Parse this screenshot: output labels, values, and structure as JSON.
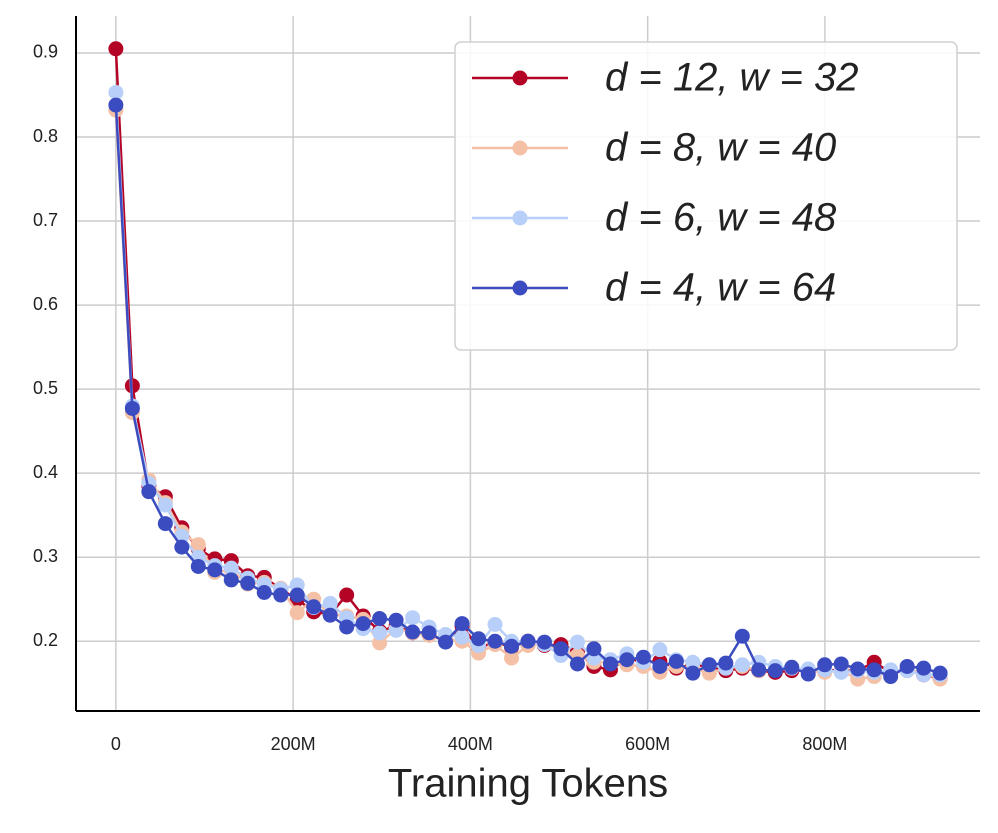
{
  "chart_data": {
    "type": "line",
    "xlabel": "Training Tokens",
    "x": [
      0,
      18.6,
      37.2,
      55.8,
      74.4,
      93,
      111.6,
      130.2,
      148.8,
      167.4,
      186,
      204.6,
      223.2,
      241.8,
      260.4,
      279,
      297.6,
      316.2,
      334.8,
      353.4,
      372,
      390.6,
      409.2,
      427.8,
      446.4,
      465,
      483.6,
      502.2,
      520.8,
      539.4,
      558,
      576.6,
      595.2,
      613.8,
      632.4,
      651,
      669.6,
      688.2,
      706.8,
      725.4,
      744,
      762.6,
      781.2,
      799.8,
      818.4,
      837,
      855.6,
      874.2,
      892.8,
      911.4,
      930
    ],
    "series": [
      {
        "name": "d = 12, w = 32",
        "color": "#b40426",
        "values": [
          0.905,
          0.504,
          0.385,
          0.372,
          0.335,
          0.31,
          0.298,
          0.296,
          0.278,
          0.276,
          0.262,
          0.25,
          0.235,
          0.232,
          0.255,
          0.23,
          0.212,
          0.218,
          0.21,
          0.208,
          0.2,
          0.218,
          0.192,
          0.199,
          0.193,
          0.2,
          0.195,
          0.196,
          0.188,
          0.17,
          0.166,
          0.18,
          0.175,
          0.176,
          0.168,
          0.172,
          0.17,
          0.165,
          0.168,
          0.165,
          0.163,
          0.165,
          0.165,
          0.166,
          0.165,
          0.165,
          0.175,
          0.163,
          0.167,
          0.16,
          0.156
        ]
      },
      {
        "name": "d = 8, w = 40",
        "color": "#f4c0a6",
        "values": [
          0.832,
          0.472,
          0.392,
          0.365,
          0.33,
          0.315,
          0.282,
          0.285,
          0.268,
          0.27,
          0.263,
          0.234,
          0.25,
          0.232,
          0.23,
          0.226,
          0.198,
          0.215,
          0.21,
          0.207,
          0.203,
          0.2,
          0.186,
          0.196,
          0.18,
          0.195,
          0.197,
          0.19,
          0.183,
          0.175,
          0.175,
          0.172,
          0.17,
          0.163,
          0.17,
          0.168,
          0.162,
          0.168,
          0.17,
          0.165,
          0.166,
          0.168,
          0.165,
          0.163,
          0.165,
          0.155,
          0.158,
          0.164,
          0.165,
          0.162,
          0.155
        ]
      },
      {
        "name": "d = 6, w = 48",
        "color": "#b8d0f9",
        "values": [
          0.853,
          0.48,
          0.388,
          0.362,
          0.325,
          0.3,
          0.29,
          0.287,
          0.275,
          0.268,
          0.262,
          0.267,
          0.24,
          0.245,
          0.228,
          0.215,
          0.21,
          0.213,
          0.228,
          0.217,
          0.208,
          0.205,
          0.195,
          0.22,
          0.2,
          0.2,
          0.196,
          0.183,
          0.199,
          0.18,
          0.178,
          0.185,
          0.175,
          0.19,
          0.178,
          0.175,
          0.172,
          0.168,
          0.172,
          0.175,
          0.17,
          0.168,
          0.167,
          0.166,
          0.163,
          0.165,
          0.163,
          0.166,
          0.165,
          0.16,
          0.16
        ]
      },
      {
        "name": "d = 4, w = 64",
        "color": "#3b4cc0",
        "values": [
          0.838,
          0.477,
          0.378,
          0.34,
          0.312,
          0.289,
          0.285,
          0.273,
          0.269,
          0.258,
          0.255,
          0.255,
          0.241,
          0.231,
          0.217,
          0.221,
          0.227,
          0.225,
          0.211,
          0.21,
          0.199,
          0.221,
          0.203,
          0.2,
          0.194,
          0.2,
          0.199,
          0.191,
          0.173,
          0.191,
          0.173,
          0.178,
          0.181,
          0.17,
          0.176,
          0.162,
          0.172,
          0.174,
          0.206,
          0.166,
          0.165,
          0.169,
          0.161,
          0.172,
          0.173,
          0.167,
          0.166,
          0.158,
          0.17,
          0.168,
          0.162
        ]
      }
    ],
    "xlim": [
      -45,
      975
    ],
    "ylim": [
      0.117,
      0.944
    ],
    "xticks": [
      0,
      {
        "value": 200,
        "label": "200M"
      },
      {
        "value": 400,
        "label": "400M"
      },
      {
        "value": 600,
        "label": "600M"
      },
      {
        "value": 800,
        "label": "800M"
      }
    ],
    "yticks": [
      0.2,
      0.3,
      0.4,
      0.5,
      0.6,
      0.7,
      0.8,
      0.9
    ],
    "grid": true,
    "legend": "upper right"
  }
}
